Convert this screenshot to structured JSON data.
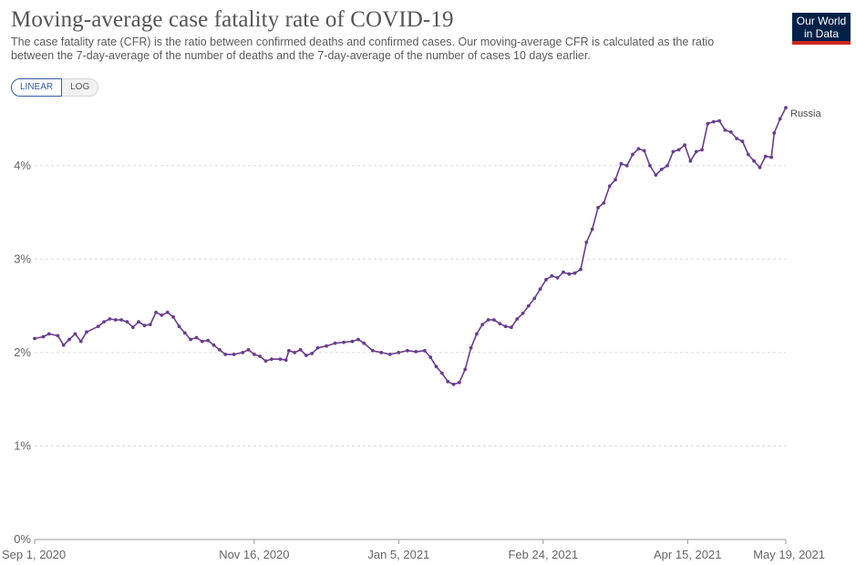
{
  "header": {
    "title": "Moving-average case fatality rate of COVID-19",
    "subtitle": "The case fatality rate (CFR) is the ratio between confirmed deaths and confirmed cases. Our moving-average CFR is calculated as the ratio between the 7-day-average of the number of deaths and the 7-day-average of the number of cases 10 days earlier.",
    "logo_line1": "Our World",
    "logo_line2": "in Data"
  },
  "controls": {
    "linear_label": "LINEAR",
    "log_label": "LOG",
    "active": "LINEAR"
  },
  "colors": {
    "series": "#6b3d8f",
    "grid": "#dddddd",
    "logo_bg": "#002147",
    "logo_accent": "#ce261e",
    "toggle_active": "#3360a9"
  },
  "chart_data": {
    "type": "line",
    "x_axis": {
      "start": "2020-09-01",
      "end": "2021-05-19",
      "ticks": [
        {
          "date": "2020-09-01",
          "label": "Sep 1, 2020"
        },
        {
          "date": "2020-11-16",
          "label": "Nov 16, 2020"
        },
        {
          "date": "2021-01-05",
          "label": "Jan 5, 2021"
        },
        {
          "date": "2021-02-24",
          "label": "Feb 24, 2021"
        },
        {
          "date": "2021-04-15",
          "label": "Apr 15, 2021"
        },
        {
          "date": "2021-05-19",
          "label": "May 19, 2021"
        }
      ]
    },
    "y_axis": {
      "ylim": [
        0,
        4.7
      ],
      "ticks": [
        {
          "value": 0,
          "label": "0%"
        },
        {
          "value": 1,
          "label": "1%"
        },
        {
          "value": 2,
          "label": "2%"
        },
        {
          "value": 3,
          "label": "3%"
        },
        {
          "value": 4,
          "label": "4%"
        }
      ],
      "grid": true
    },
    "series": [
      {
        "name": "Russia",
        "points": [
          [
            "2020-09-01",
            2.15
          ],
          [
            "2020-09-04",
            2.17
          ],
          [
            "2020-09-06",
            2.2
          ],
          [
            "2020-09-09",
            2.18
          ],
          [
            "2020-09-11",
            2.08
          ],
          [
            "2020-09-13",
            2.14
          ],
          [
            "2020-09-15",
            2.2
          ],
          [
            "2020-09-17",
            2.12
          ],
          [
            "2020-09-19",
            2.22
          ],
          [
            "2020-09-23",
            2.28
          ],
          [
            "2020-09-25",
            2.33
          ],
          [
            "2020-09-27",
            2.36
          ],
          [
            "2020-09-29",
            2.35
          ],
          [
            "2020-10-01",
            2.35
          ],
          [
            "2020-10-03",
            2.33
          ],
          [
            "2020-10-05",
            2.27
          ],
          [
            "2020-10-07",
            2.33
          ],
          [
            "2020-10-09",
            2.29
          ],
          [
            "2020-10-11",
            2.3
          ],
          [
            "2020-10-13",
            2.43
          ],
          [
            "2020-10-15",
            2.4
          ],
          [
            "2020-10-17",
            2.43
          ],
          [
            "2020-10-19",
            2.38
          ],
          [
            "2020-10-21",
            2.28
          ],
          [
            "2020-10-23",
            2.21
          ],
          [
            "2020-10-25",
            2.14
          ],
          [
            "2020-10-27",
            2.16
          ],
          [
            "2020-10-29",
            2.12
          ],
          [
            "2020-10-31",
            2.13
          ],
          [
            "2020-11-02",
            2.08
          ],
          [
            "2020-11-04",
            2.03
          ],
          [
            "2020-11-06",
            1.98
          ],
          [
            "2020-11-09",
            1.98
          ],
          [
            "2020-11-12",
            2.0
          ],
          [
            "2020-11-14",
            2.03
          ],
          [
            "2020-11-16",
            1.98
          ],
          [
            "2020-11-18",
            1.96
          ],
          [
            "2020-11-20",
            1.91
          ],
          [
            "2020-11-22",
            1.93
          ],
          [
            "2020-11-25",
            1.93
          ],
          [
            "2020-11-27",
            1.92
          ],
          [
            "2020-11-28",
            2.02
          ],
          [
            "2020-11-30",
            2.0
          ],
          [
            "2020-12-02",
            2.03
          ],
          [
            "2020-12-04",
            1.97
          ],
          [
            "2020-12-06",
            1.99
          ],
          [
            "2020-12-08",
            2.05
          ],
          [
            "2020-12-11",
            2.07
          ],
          [
            "2020-12-14",
            2.1
          ],
          [
            "2020-12-17",
            2.11
          ],
          [
            "2020-12-20",
            2.12
          ],
          [
            "2020-12-22",
            2.14
          ],
          [
            "2020-12-24",
            2.1
          ],
          [
            "2020-12-27",
            2.02
          ],
          [
            "2020-12-30",
            2.0
          ],
          [
            "2021-01-02",
            1.98
          ],
          [
            "2021-01-05",
            2.0
          ],
          [
            "2021-01-08",
            2.02
          ],
          [
            "2021-01-11",
            2.01
          ],
          [
            "2021-01-14",
            2.02
          ],
          [
            "2021-01-16",
            1.95
          ],
          [
            "2021-01-18",
            1.85
          ],
          [
            "2021-01-20",
            1.78
          ],
          [
            "2021-01-22",
            1.69
          ],
          [
            "2021-01-24",
            1.66
          ],
          [
            "2021-01-26",
            1.68
          ],
          [
            "2021-01-28",
            1.82
          ],
          [
            "2021-01-30",
            2.05
          ],
          [
            "2021-02-01",
            2.2
          ],
          [
            "2021-02-03",
            2.3
          ],
          [
            "2021-02-05",
            2.35
          ],
          [
            "2021-02-07",
            2.35
          ],
          [
            "2021-02-09",
            2.31
          ],
          [
            "2021-02-11",
            2.28
          ],
          [
            "2021-02-13",
            2.27
          ],
          [
            "2021-02-15",
            2.36
          ],
          [
            "2021-02-17",
            2.42
          ],
          [
            "2021-02-19",
            2.5
          ],
          [
            "2021-02-21",
            2.58
          ],
          [
            "2021-02-23",
            2.68
          ],
          [
            "2021-02-25",
            2.78
          ],
          [
            "2021-02-27",
            2.82
          ],
          [
            "2021-03-01",
            2.8
          ],
          [
            "2021-03-03",
            2.86
          ],
          [
            "2021-03-05",
            2.84
          ],
          [
            "2021-03-07",
            2.85
          ],
          [
            "2021-03-09",
            2.89
          ],
          [
            "2021-03-11",
            3.18
          ],
          [
            "2021-03-13",
            3.32
          ],
          [
            "2021-03-15",
            3.55
          ],
          [
            "2021-03-17",
            3.6
          ],
          [
            "2021-03-19",
            3.78
          ],
          [
            "2021-03-21",
            3.85
          ],
          [
            "2021-03-23",
            4.02
          ],
          [
            "2021-03-25",
            4.0
          ],
          [
            "2021-03-27",
            4.12
          ],
          [
            "2021-03-29",
            4.18
          ],
          [
            "2021-03-31",
            4.16
          ],
          [
            "2021-04-02",
            4.0
          ],
          [
            "2021-04-04",
            3.9
          ],
          [
            "2021-04-06",
            3.96
          ],
          [
            "2021-04-08",
            4.0
          ],
          [
            "2021-04-10",
            4.15
          ],
          [
            "2021-04-12",
            4.17
          ],
          [
            "2021-04-14",
            4.22
          ],
          [
            "2021-04-16",
            4.05
          ],
          [
            "2021-04-18",
            4.15
          ],
          [
            "2021-04-20",
            4.17
          ],
          [
            "2021-04-22",
            4.45
          ],
          [
            "2021-04-24",
            4.47
          ],
          [
            "2021-04-26",
            4.48
          ],
          [
            "2021-04-28",
            4.38
          ],
          [
            "2021-04-30",
            4.36
          ],
          [
            "2021-05-02",
            4.29
          ],
          [
            "2021-05-04",
            4.26
          ],
          [
            "2021-05-06",
            4.12
          ],
          [
            "2021-05-08",
            4.05
          ],
          [
            "2021-05-10",
            3.98
          ],
          [
            "2021-05-12",
            4.1
          ],
          [
            "2021-05-14",
            4.09
          ],
          [
            "2021-05-15",
            4.35
          ],
          [
            "2021-05-17",
            4.5
          ],
          [
            "2021-05-19",
            4.62
          ]
        ]
      }
    ]
  }
}
